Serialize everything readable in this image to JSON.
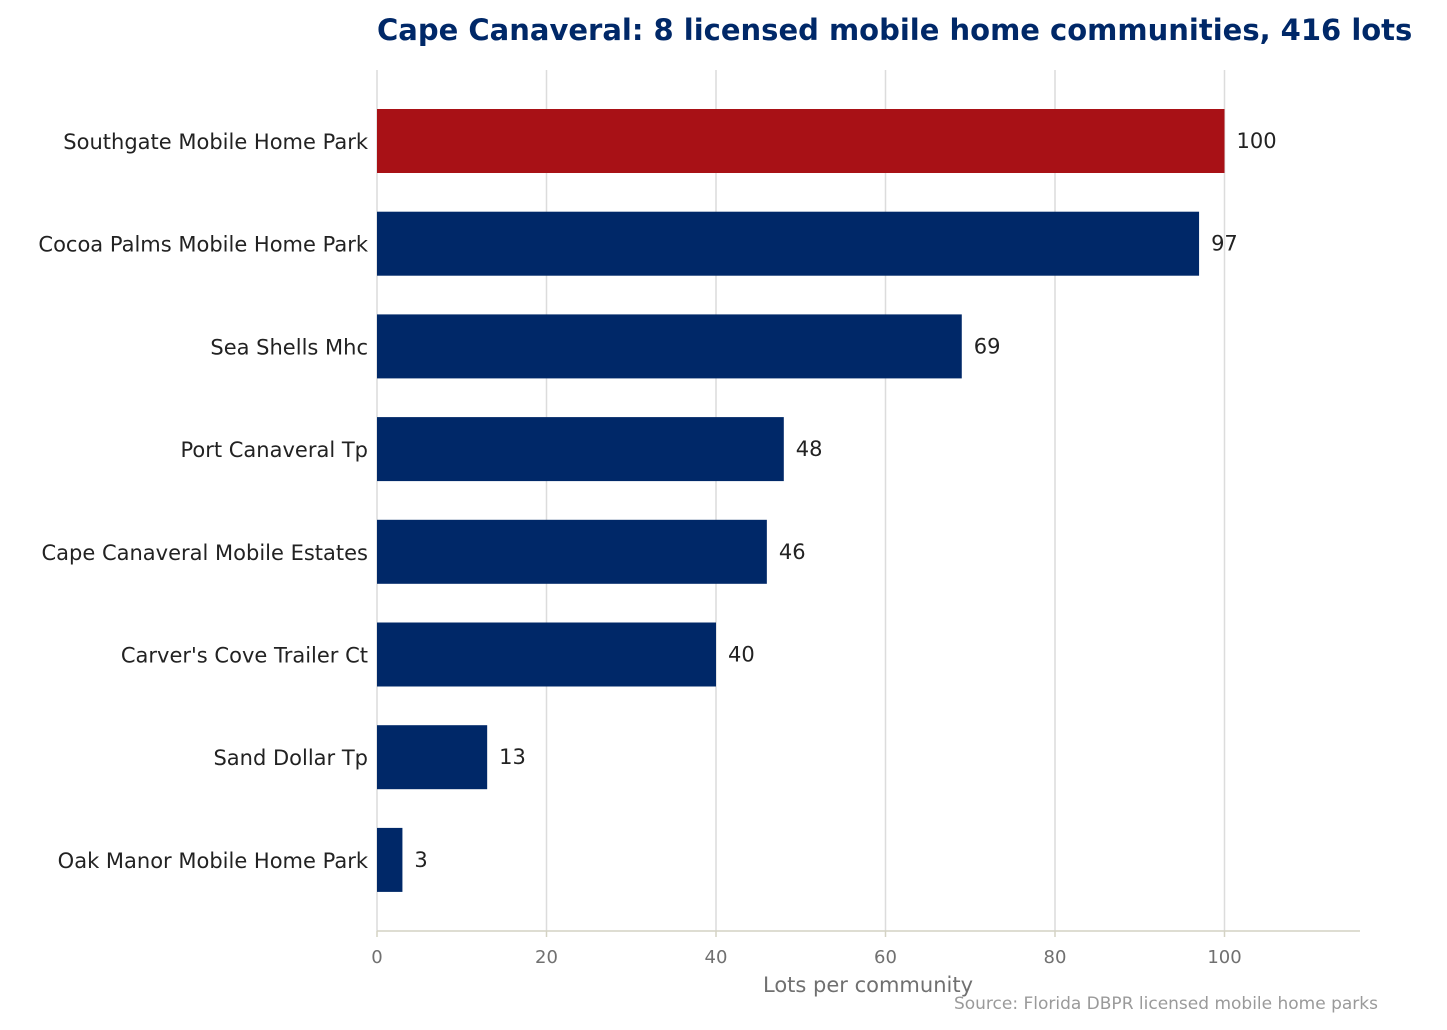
{
  "chart_data": {
    "type": "bar",
    "orientation": "horizontal",
    "title": "Cape Canaveral: 8 licensed mobile home communities, 416 lots",
    "xlabel": "Lots per community",
    "ylabel": "",
    "xlim": [
      0,
      116
    ],
    "xticks": [
      0,
      20,
      40,
      60,
      80,
      100
    ],
    "grid": true,
    "categories": [
      "Southgate Mobile Home Park",
      "Cocoa Palms Mobile Home Park",
      "Sea Shells Mhc",
      "Port Canaveral Tp",
      "Cape Canaveral Mobile Estates",
      "Carver's Cove Trailer Ct",
      "Sand Dollar Tp",
      "Oak Manor Mobile Home Park"
    ],
    "values": [
      100,
      97,
      69,
      48,
      46,
      40,
      13,
      3
    ],
    "bar_colors": [
      "#a81116",
      "#002868",
      "#002868",
      "#002868",
      "#002868",
      "#002868",
      "#002868",
      "#002868"
    ],
    "source": "Source: Florida DBPR licensed mobile home parks"
  },
  "colors": {
    "highlight": "#a81116",
    "bar": "#002868",
    "title": "#002868",
    "grid": "#dcdcdc",
    "axis": "#d4d2c4"
  }
}
